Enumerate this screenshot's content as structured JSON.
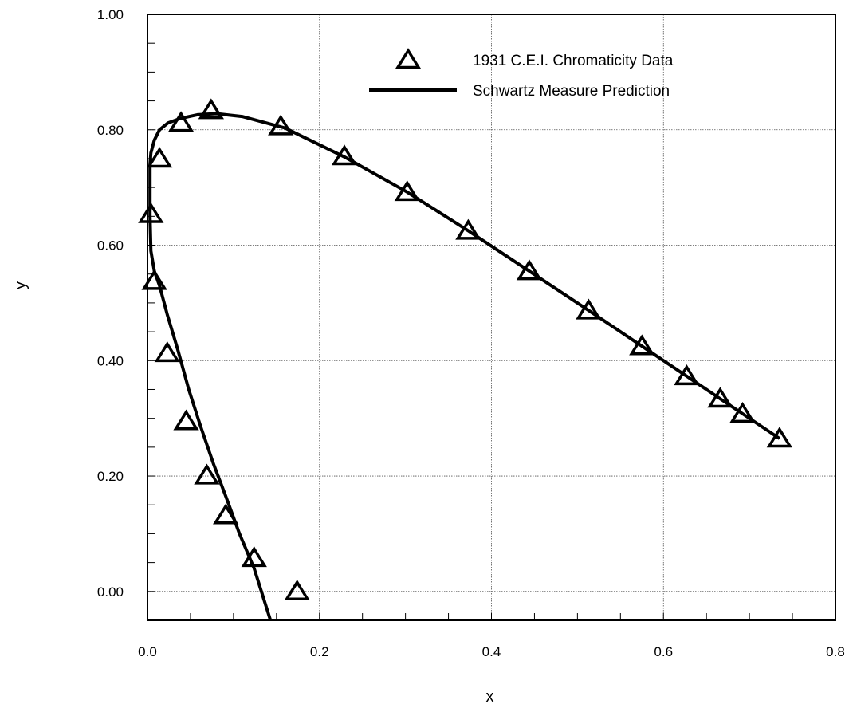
{
  "chart_data": {
    "type": "scatter",
    "title": "",
    "xlabel": "x",
    "ylabel": "y",
    "xlim": [
      0.0,
      0.8
    ],
    "ylim": [
      -0.05,
      1.0
    ],
    "x_ticks": [
      {
        "value": 0.0,
        "label": "0.0"
      },
      {
        "value": 0.2,
        "label": "0.2"
      },
      {
        "value": 0.4,
        "label": "0.4"
      },
      {
        "value": 0.6,
        "label": "0.6"
      },
      {
        "value": 0.8,
        "label": "0.8"
      }
    ],
    "y_ticks": [
      {
        "value": 0.0,
        "label": "0.00"
      },
      {
        "value": 0.2,
        "label": "0.20"
      },
      {
        "value": 0.4,
        "label": "0.40"
      },
      {
        "value": 0.6,
        "label": "0.60"
      },
      {
        "value": 0.8,
        "label": "0.80"
      },
      {
        "value": 1.0,
        "label": "1.00"
      }
    ],
    "grid": true,
    "legend_position": "top-right",
    "series": [
      {
        "name": "1931 C.E.I. Chromaticity Data",
        "kind": "markers",
        "marker": "triangle",
        "x": [
          0.174,
          0.124,
          0.091,
          0.069,
          0.045,
          0.023,
          0.008,
          0.004,
          0.014,
          0.039,
          0.074,
          0.155,
          0.229,
          0.302,
          0.373,
          0.444,
          0.513,
          0.575,
          0.627,
          0.666,
          0.692,
          0.735
        ],
        "y": [
          0.0,
          0.058,
          0.132,
          0.201,
          0.295,
          0.413,
          0.538,
          0.654,
          0.75,
          0.812,
          0.834,
          0.806,
          0.754,
          0.692,
          0.625,
          0.555,
          0.487,
          0.425,
          0.373,
          0.334,
          0.308,
          0.265
        ]
      },
      {
        "name": "Schwartz Measure Prediction",
        "kind": "line",
        "x": [
          0.143,
          0.124,
          0.107,
          0.091,
          0.077,
          0.062,
          0.048,
          0.035,
          0.023,
          0.014,
          0.008,
          0.004,
          0.003,
          0.003,
          0.003,
          0.004,
          0.008,
          0.014,
          0.024,
          0.039,
          0.058,
          0.08,
          0.11,
          0.16,
          0.229,
          0.302,
          0.373,
          0.444,
          0.513,
          0.575,
          0.627,
          0.666,
          0.692,
          0.735
        ],
        "y": [
          -0.05,
          0.04,
          0.1,
          0.165,
          0.22,
          0.285,
          0.35,
          0.42,
          0.48,
          0.53,
          0.555,
          0.59,
          0.65,
          0.7,
          0.74,
          0.76,
          0.782,
          0.8,
          0.812,
          0.82,
          0.826,
          0.828,
          0.823,
          0.803,
          0.753,
          0.692,
          0.625,
          0.555,
          0.487,
          0.425,
          0.373,
          0.334,
          0.308,
          0.265
        ]
      }
    ],
    "legend": [
      {
        "label": "1931 C.E.I. Chromaticity Data",
        "marker": "triangle"
      },
      {
        "label": "Schwartz Measure Prediction",
        "marker": "line"
      }
    ]
  }
}
